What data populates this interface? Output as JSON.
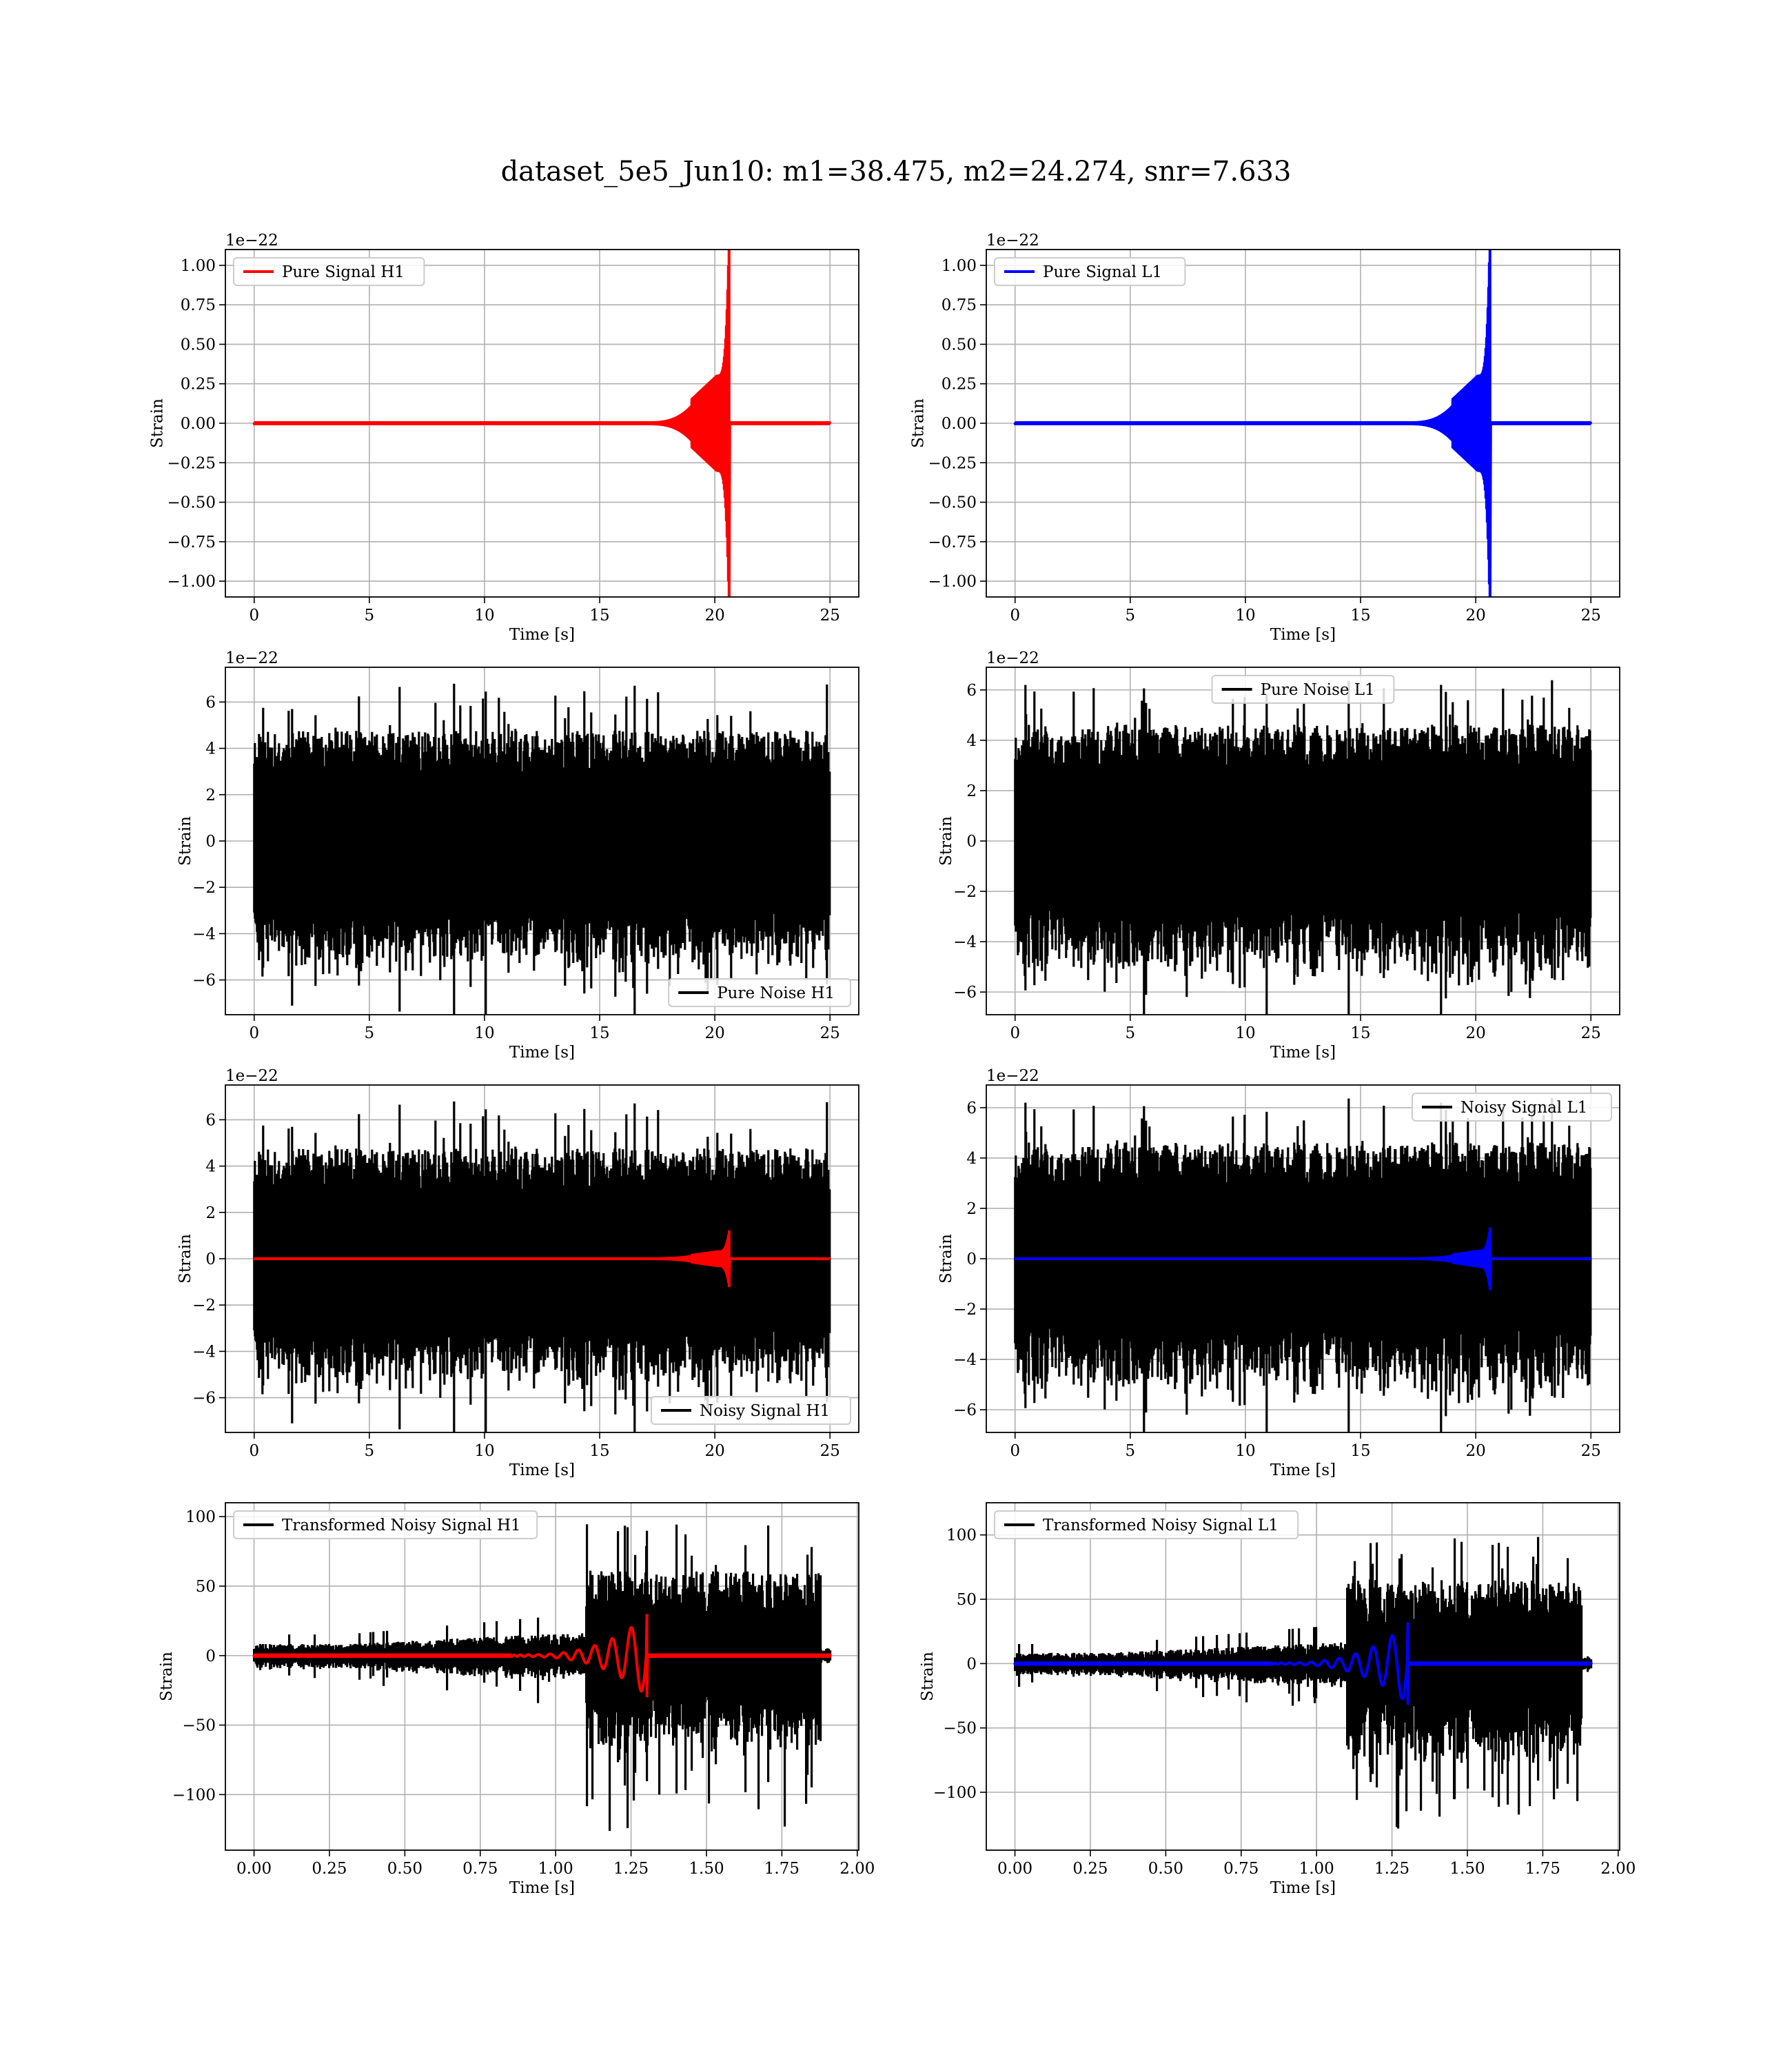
{
  "suptitle": "dataset_5e5_Jun10: m1=38.475, m2=24.274, snr=7.633",
  "colors": {
    "h1": "#ff0000",
    "l1": "#0000ff",
    "noise": "#000000",
    "grid": "#b0b0b0"
  },
  "chart_data": [
    {
      "type": "line",
      "title": "",
      "xlabel": "Time [s]",
      "ylabel": "Strain",
      "offset_text": "1e−22",
      "xlim": [
        -1.25,
        26.25
      ],
      "ylim": [
        -1.1,
        1.1
      ],
      "xticks": [
        0,
        5,
        10,
        15,
        20,
        25
      ],
      "xtick_labels": [
        "0",
        "5",
        "10",
        "15",
        "20",
        "25"
      ],
      "yticks": [
        -1.0,
        -0.75,
        -0.5,
        -0.25,
        0.0,
        0.25,
        0.5,
        0.75,
        1.0
      ],
      "ytick_labels": [
        "−1.00",
        "−0.75",
        "−0.50",
        "−0.25",
        "0.00",
        "0.25",
        "0.50",
        "0.75",
        "1.00"
      ],
      "grid": true,
      "legend_position": "upper-left",
      "series": [
        {
          "name": "Pure Signal H1",
          "color": "#ff0000",
          "kind": "chirp",
          "params": {
            "t0": 0,
            "t1": 25,
            "tc": 20.6,
            "peak": 1.0,
            "plateau": 0.3,
            "onset": 19.0
          }
        }
      ]
    },
    {
      "type": "line",
      "title": "",
      "xlabel": "Time [s]",
      "ylabel": "Strain",
      "offset_text": "1e−22",
      "xlim": [
        -1.25,
        26.25
      ],
      "ylim": [
        -1.1,
        1.1
      ],
      "xticks": [
        0,
        5,
        10,
        15,
        20,
        25
      ],
      "xtick_labels": [
        "0",
        "5",
        "10",
        "15",
        "20",
        "25"
      ],
      "yticks": [
        -1.0,
        -0.75,
        -0.5,
        -0.25,
        0.0,
        0.25,
        0.5,
        0.75,
        1.0
      ],
      "ytick_labels": [
        "−1.00",
        "−0.75",
        "−0.50",
        "−0.25",
        "0.00",
        "0.25",
        "0.50",
        "0.75",
        "1.00"
      ],
      "grid": true,
      "legend_position": "upper-left",
      "series": [
        {
          "name": "Pure Signal L1",
          "color": "#0000ff",
          "kind": "chirp",
          "params": {
            "t0": 0,
            "t1": 25,
            "tc": 20.6,
            "peak": 1.02,
            "plateau": 0.3,
            "onset": 19.0
          }
        }
      ]
    },
    {
      "type": "line",
      "title": "",
      "xlabel": "Time [s]",
      "ylabel": "Strain",
      "offset_text": "1e−22",
      "xlim": [
        -1.25,
        26.25
      ],
      "ylim": [
        -7.5,
        7.5
      ],
      "xticks": [
        0,
        5,
        10,
        15,
        20,
        25
      ],
      "xtick_labels": [
        "0",
        "5",
        "10",
        "15",
        "20",
        "25"
      ],
      "yticks": [
        -6,
        -4,
        -2,
        0,
        2,
        4,
        6
      ],
      "ytick_labels": [
        "−6",
        "−4",
        "−2",
        "0",
        "2",
        "4",
        "6"
      ],
      "grid": true,
      "legend_position": "lower-right",
      "series": [
        {
          "name": "Pure Noise H1",
          "color": "#000000",
          "kind": "noise",
          "params": {
            "t0": 0,
            "t1": 25,
            "base": 3.4,
            "spike": 6.8,
            "seed": 11
          }
        }
      ]
    },
    {
      "type": "line",
      "title": "",
      "xlabel": "Time [s]",
      "ylabel": "Strain",
      "offset_text": "1e−22",
      "xlim": [
        -1.25,
        26.25
      ],
      "ylim": [
        -6.9,
        6.9
      ],
      "xticks": [
        0,
        5,
        10,
        15,
        20,
        25
      ],
      "xtick_labels": [
        "0",
        "5",
        "10",
        "15",
        "20",
        "25"
      ],
      "yticks": [
        -6,
        -4,
        -2,
        0,
        2,
        4,
        6
      ],
      "ytick_labels": [
        "−6",
        "−4",
        "−2",
        "0",
        "2",
        "4",
        "6"
      ],
      "grid": true,
      "legend_position": "upper-center",
      "series": [
        {
          "name": "Pure Noise L1",
          "color": "#000000",
          "kind": "noise",
          "params": {
            "t0": 0,
            "t1": 25,
            "base": 3.3,
            "spike": 6.4,
            "seed": 23
          }
        }
      ]
    },
    {
      "type": "line",
      "title": "",
      "xlabel": "Time [s]",
      "ylabel": "Strain",
      "offset_text": "1e−22",
      "xlim": [
        -1.25,
        26.25
      ],
      "ylim": [
        -7.5,
        7.5
      ],
      "xticks": [
        0,
        5,
        10,
        15,
        20,
        25
      ],
      "xtick_labels": [
        "0",
        "5",
        "10",
        "15",
        "20",
        "25"
      ],
      "yticks": [
        -6,
        -4,
        -2,
        0,
        2,
        4,
        6
      ],
      "ytick_labels": [
        "−6",
        "−4",
        "−2",
        "0",
        "2",
        "4",
        "6"
      ],
      "grid": true,
      "legend_position": "lower-right",
      "series": [
        {
          "name": "Noisy Signal H1",
          "color": "#000000",
          "kind": "noise",
          "params": {
            "t0": 0,
            "t1": 25,
            "base": 3.4,
            "spike": 6.8,
            "seed": 11
          }
        },
        {
          "name": "",
          "color": "#ff0000",
          "kind": "chirp",
          "params": {
            "t0": 0,
            "t1": 25,
            "tc": 20.6,
            "peak": 1.0,
            "plateau": 0.3,
            "onset": 19.0
          }
        }
      ]
    },
    {
      "type": "line",
      "title": "",
      "xlabel": "Time [s]",
      "ylabel": "Strain",
      "offset_text": "1e−22",
      "xlim": [
        -1.25,
        26.25
      ],
      "ylim": [
        -6.9,
        6.9
      ],
      "xticks": [
        0,
        5,
        10,
        15,
        20,
        25
      ],
      "xtick_labels": [
        "0",
        "5",
        "10",
        "15",
        "20",
        "25"
      ],
      "yticks": [
        -6,
        -4,
        -2,
        0,
        2,
        4,
        6
      ],
      "ytick_labels": [
        "−6",
        "−4",
        "−2",
        "0",
        "2",
        "4",
        "6"
      ],
      "grid": true,
      "legend_position": "upper-right",
      "series": [
        {
          "name": "Noisy Signal L1",
          "color": "#000000",
          "kind": "noise",
          "params": {
            "t0": 0,
            "t1": 25,
            "base": 3.3,
            "spike": 6.4,
            "seed": 23
          }
        },
        {
          "name": "",
          "color": "#0000ff",
          "kind": "chirp",
          "params": {
            "t0": 0,
            "t1": 25,
            "tc": 20.6,
            "peak": 1.02,
            "plateau": 0.3,
            "onset": 19.0
          }
        }
      ]
    },
    {
      "type": "line",
      "title": "",
      "xlabel": "Time [s]",
      "ylabel": "Strain",
      "offset_text": "",
      "xlim": [
        -0.095,
        2.005
      ],
      "ylim": [
        -140,
        110
      ],
      "xticks": [
        0.0,
        0.25,
        0.5,
        0.75,
        1.0,
        1.25,
        1.5,
        1.75,
        2.0
      ],
      "xtick_labels": [
        "0.00",
        "0.25",
        "0.50",
        "0.75",
        "1.00",
        "1.25",
        "1.50",
        "1.75",
        "2.00"
      ],
      "yticks": [
        -100,
        -50,
        0,
        50,
        100
      ],
      "ytick_labels": [
        "−100",
        "−50",
        "0",
        "50",
        "100"
      ],
      "grid": true,
      "legend_position": "upper-left",
      "series": [
        {
          "name": "Transformed Noisy Signal H1",
          "color": "#000000",
          "kind": "tnoise",
          "params": {
            "t0": 0,
            "t1": 1.91,
            "ramp_start": 0.3,
            "jump": 1.1,
            "end": 1.88,
            "low": 8,
            "mid": 16,
            "high": 58,
            "spike": 128,
            "seed": 37
          }
        },
        {
          "name": "",
          "color": "#ff0000",
          "kind": "tchirp",
          "params": {
            "t0": 0,
            "t1": 1.91,
            "tc": 1.3,
            "peak": 28,
            "onset": 0.85
          }
        }
      ]
    },
    {
      "type": "line",
      "title": "",
      "xlabel": "Time [s]",
      "ylabel": "Strain",
      "offset_text": "",
      "xlim": [
        -0.095,
        2.005
      ],
      "ylim": [
        -145,
        125
      ],
      "xticks": [
        0.0,
        0.25,
        0.5,
        0.75,
        1.0,
        1.25,
        1.5,
        1.75,
        2.0
      ],
      "xtick_labels": [
        "0.00",
        "0.25",
        "0.50",
        "0.75",
        "1.00",
        "1.25",
        "1.50",
        "1.75",
        "2.00"
      ],
      "yticks": [
        -100,
        -50,
        0,
        50,
        100
      ],
      "ytick_labels": [
        "−100",
        "−50",
        "0",
        "50",
        "100"
      ],
      "grid": true,
      "legend_position": "upper-left",
      "series": [
        {
          "name": "Transformed Noisy Signal L1",
          "color": "#000000",
          "kind": "tnoise",
          "params": {
            "t0": 0,
            "t1": 1.91,
            "ramp_start": 0.3,
            "jump": 1.1,
            "end": 1.88,
            "low": 8,
            "mid": 16,
            "high": 62,
            "spike": 133,
            "seed": 41
          }
        },
        {
          "name": "",
          "color": "#0000ff",
          "kind": "tchirp",
          "params": {
            "t0": 0,
            "t1": 1.91,
            "tc": 1.3,
            "peak": 30,
            "onset": 0.85
          }
        }
      ]
    }
  ]
}
